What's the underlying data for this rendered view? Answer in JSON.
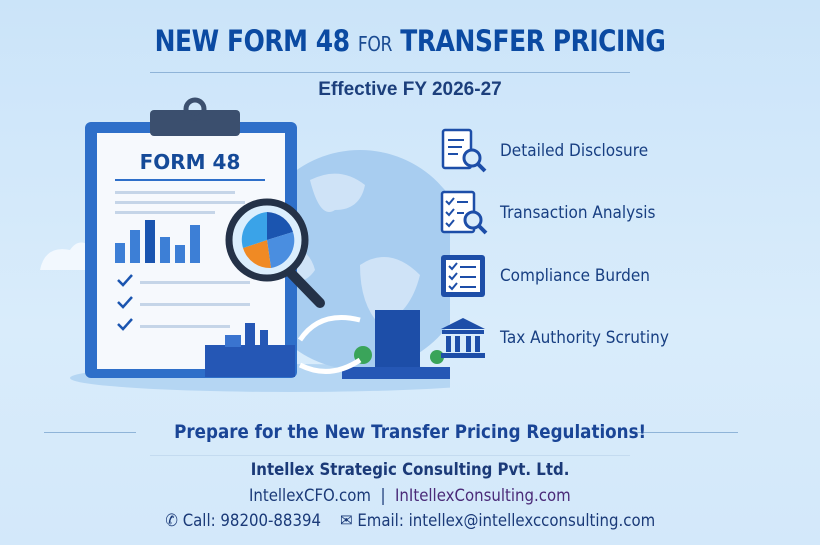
{
  "header": {
    "title_part1": "NEW FORM 48",
    "title_connector": "FOR",
    "title_part2": "TRANSFER PRICING",
    "subtitle": "Effective FY 2026-27"
  },
  "illustration": {
    "clipboard_heading": "FORM 48"
  },
  "features": [
    {
      "icon": "document-search-icon",
      "label": "Detailed Disclosure"
    },
    {
      "icon": "checklist-magnifier-icon",
      "label": "Transaction Analysis"
    },
    {
      "icon": "checklist-icon",
      "label": "Compliance Burden"
    },
    {
      "icon": "government-building-icon",
      "label": "Tax Authority Scrutiny"
    }
  ],
  "cta": "Prepare for the New Transfer Pricing Regulations!",
  "footer": {
    "company": "Intellex Strategic Consulting Pvt. Ltd.",
    "site1": "IntellexCFO.com",
    "separator": "|",
    "site2": "InItellexConsulting.com",
    "call": "Call: 98200-88394",
    "email": "Email: intellex@intellexcconsulting.com"
  },
  "colors": {
    "primary": "#0b4aa2",
    "text": "#1b3a78",
    "site2": "#4a2a78"
  }
}
